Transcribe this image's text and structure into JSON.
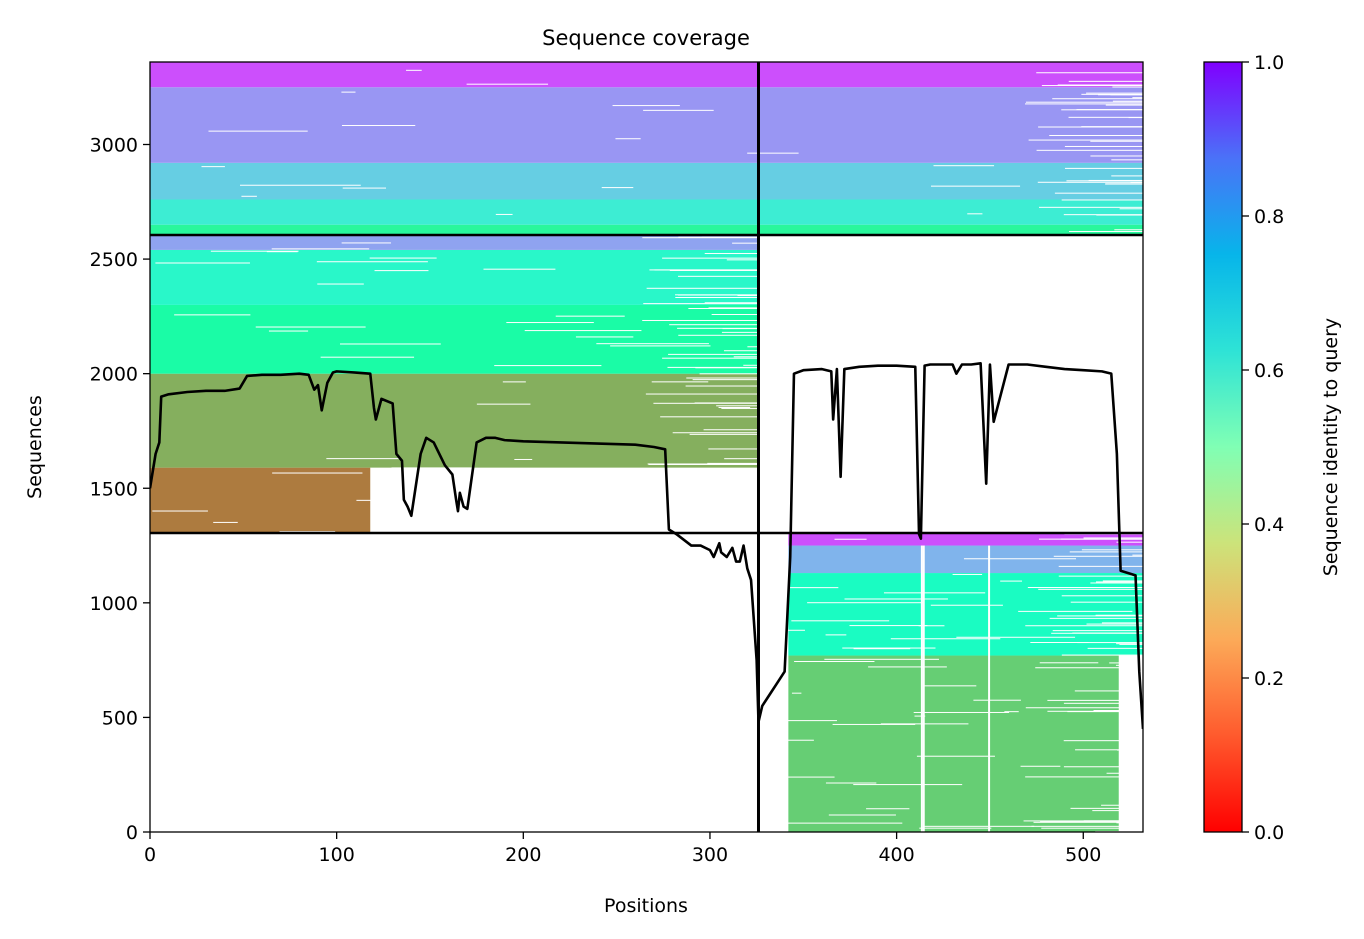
{
  "chart_data": {
    "type": "heatmap",
    "title": "Sequence coverage",
    "xlabel": "Positions",
    "ylabel": "Sequences",
    "xlim": [
      0,
      532
    ],
    "ylim": [
      0,
      3360
    ],
    "xticks": [
      0,
      100,
      200,
      300,
      400,
      500
    ],
    "yticks": [
      0,
      500,
      1000,
      1500,
      2000,
      2500,
      3000
    ],
    "colorbar": {
      "label": "Sequence identity to query",
      "range": [
        0,
        1
      ],
      "ticks": [
        "0.0",
        "0.2",
        "0.4",
        "0.6",
        "0.8",
        "1.0"
      ],
      "colormap": "rainbow_r"
    },
    "domain_boundary_x": 326,
    "block_boundaries_y": [
      1305,
      2605
    ],
    "blocks": [
      {
        "name": "",
        "x_range": [
          0,
          326
        ],
        "y_range": [
          1305,
          2605
        ],
        "identity_bands": [
          {
            "y_from": 1305,
            "y_to": 1590,
            "identity": 0.16,
            "x_max": 118
          },
          {
            "y_from": 1590,
            "y_to": 2000,
            "identity": 0.24,
            "x_max": 326
          },
          {
            "y_from": 2000,
            "y_to": 2300,
            "identity": 0.45,
            "x_max": 326
          },
          {
            "y_from": 2300,
            "y_to": 2540,
            "identity": 0.58,
            "x_max": 326
          },
          {
            "y_from": 2540,
            "y_to": 2605,
            "identity": 0.78,
            "x_max": 326
          }
        ]
      },
      {
        "name": "",
        "x_range": [
          0,
          532
        ],
        "y_range": [
          2605,
          3360
        ],
        "identity_bands": [
          {
            "y_from": 2605,
            "y_to": 2650,
            "identity": 0.42
          },
          {
            "y_from": 2650,
            "y_to": 2760,
            "identity": 0.62
          },
          {
            "y_from": 2760,
            "y_to": 2920,
            "identity": 0.7
          },
          {
            "y_from": 2920,
            "y_to": 3250,
            "identity": 0.8
          },
          {
            "y_from": 3250,
            "y_to": 3360,
            "identity": 0.9
          }
        ]
      },
      {
        "name": "",
        "x_range": [
          326,
          532
        ],
        "y_range": [
          0,
          1305
        ],
        "identity_bands": [
          {
            "y_from": 0,
            "y_to": 770,
            "identity": 0.3,
            "x_min": 342,
            "x_max": 519
          },
          {
            "y_from": 770,
            "y_to": 1130,
            "identity": 0.55,
            "x_min": 342,
            "x_max": 532
          },
          {
            "y_from": 1130,
            "y_to": 1250,
            "identity": 0.75,
            "x_min": 342,
            "x_max": 532
          },
          {
            "y_from": 1250,
            "y_to": 1305,
            "identity": 0.9,
            "x_min": 342,
            "x_max": 532
          }
        ]
      }
    ],
    "coverage_line": {
      "x": [
        0,
        3,
        5,
        6,
        10,
        20,
        30,
        40,
        48,
        52,
        60,
        70,
        80,
        85,
        88,
        90,
        92,
        95,
        98,
        100,
        110,
        118,
        120,
        121,
        124,
        130,
        132,
        135,
        136,
        138,
        140,
        145,
        148,
        152,
        158,
        162,
        164,
        165,
        166,
        168,
        170,
        175,
        180,
        185,
        190,
        200,
        220,
        240,
        260,
        270,
        276,
        278,
        282,
        290,
        295,
        300,
        302,
        305,
        306,
        309,
        312,
        314,
        316,
        318,
        320,
        322,
        325,
        326,
        328,
        332,
        336,
        340,
        343,
        345,
        350,
        360,
        365,
        366,
        368,
        370,
        372,
        380,
        390,
        400,
        410,
        412,
        413,
        415,
        418,
        430,
        432,
        435,
        440,
        445,
        448,
        450,
        452,
        460,
        470,
        480,
        490,
        500,
        510,
        515,
        518,
        520,
        528,
        530,
        532
      ],
      "y": [
        1500,
        1650,
        1700,
        1900,
        1910,
        1920,
        1925,
        1925,
        1935,
        1990,
        1995,
        1995,
        2000,
        1995,
        1930,
        1950,
        1840,
        1960,
        2005,
        2010,
        2005,
        2000,
        1850,
        1800,
        1890,
        1870,
        1650,
        1620,
        1450,
        1420,
        1380,
        1650,
        1720,
        1700,
        1600,
        1560,
        1450,
        1400,
        1480,
        1420,
        1410,
        1700,
        1720,
        1720,
        1710,
        1705,
        1700,
        1695,
        1690,
        1680,
        1670,
        1320,
        1300,
        1250,
        1250,
        1230,
        1200,
        1260,
        1220,
        1200,
        1240,
        1180,
        1180,
        1250,
        1150,
        1100,
        750,
        480,
        550,
        600,
        650,
        700,
        1200,
        2000,
        2015,
        2020,
        2010,
        1800,
        2020,
        1550,
        2020,
        2030,
        2035,
        2035,
        2030,
        1300,
        1280,
        2035,
        2040,
        2040,
        2000,
        2040,
        2040,
        2045,
        1520,
        2040,
        1790,
        2040,
        2040,
        2030,
        2020,
        2015,
        2010,
        2000,
        1650,
        1140,
        1120,
        700,
        450
      ]
    }
  }
}
